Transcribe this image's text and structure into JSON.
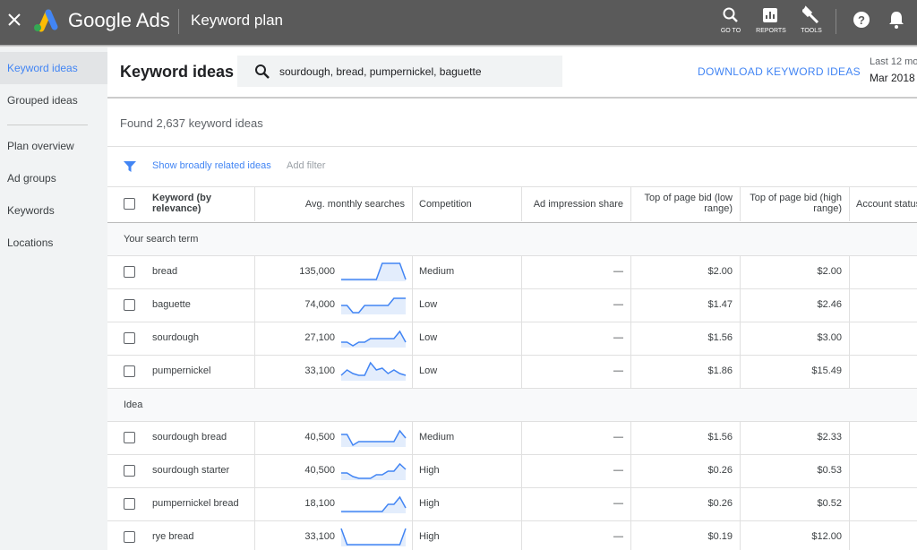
{
  "topbar": {
    "product": "Google Ads",
    "page": "Keyword plan",
    "actions": [
      "GO TO",
      "REPORTS",
      "TOOLS"
    ]
  },
  "sidebar": {
    "items": [
      "Keyword ideas",
      "Grouped ideas",
      "Plan overview",
      "Ad groups",
      "Keywords",
      "Locations"
    ]
  },
  "header": {
    "title": "Keyword ideas",
    "search": "sourdough, bread, pumpernickel, baguette",
    "download": "DOWNLOAD KEYWORD IDEAS",
    "date_range_label": "Last 12 mo",
    "date_range": "Mar 2018"
  },
  "summary": "Found 2,637 keyword ideas",
  "filters": {
    "related": "Show broadly related ideas",
    "add": "Add filter"
  },
  "table": {
    "columns": [
      "Keyword (by relevance)",
      "Avg. monthly searches",
      "Competition",
      "Ad impression share",
      "Top of page bid (low range)",
      "Top of page bid (high range)",
      "Account status"
    ],
    "groups": [
      {
        "label": "Your search term",
        "rows": [
          {
            "keyword": "bread",
            "searches": "135,000",
            "trend": [
              1,
              1,
              1,
              1,
              1,
              1,
              1,
              10,
              10,
              10,
              10,
              1
            ],
            "competition": "Medium",
            "impression_share": "—",
            "bid_low": "$2.00",
            "bid_high": "$2.00"
          },
          {
            "keyword": "baguette",
            "searches": "74,000",
            "trend": [
              5,
              5,
              1,
              1,
              5,
              5,
              5,
              5,
              5,
              9,
              9,
              9
            ],
            "competition": "Low",
            "impression_share": "—",
            "bid_low": "$1.47",
            "bid_high": "$2.46"
          },
          {
            "keyword": "sourdough",
            "searches": "27,100",
            "trend": [
              3,
              3,
              1,
              3,
              3,
              5,
              5,
              5,
              5,
              5,
              9,
              3
            ],
            "competition": "Low",
            "impression_share": "—",
            "bid_low": "$1.56",
            "bid_high": "$3.00"
          },
          {
            "keyword": "pumpernickel",
            "searches": "33,100",
            "trend": [
              3,
              6,
              4,
              3,
              3,
              10,
              6,
              7,
              4,
              6,
              4,
              3
            ],
            "competition": "Low",
            "impression_share": "—",
            "bid_low": "$1.86",
            "bid_high": "$15.49"
          }
        ]
      },
      {
        "label": "Idea",
        "rows": [
          {
            "keyword": "sourdough bread",
            "searches": "40,500",
            "trend": [
              7,
              7,
              1,
              3,
              3,
              3,
              3,
              3,
              3,
              3,
              9,
              5
            ],
            "competition": "Medium",
            "impression_share": "—",
            "bid_low": "$1.56",
            "bid_high": "$2.33"
          },
          {
            "keyword": "sourdough starter",
            "searches": "40,500",
            "trend": [
              4,
              4,
              2,
              1,
              1,
              1,
              3,
              3,
              5,
              5,
              9,
              6
            ],
            "competition": "High",
            "impression_share": "—",
            "bid_low": "$0.26",
            "bid_high": "$0.53"
          },
          {
            "keyword": "pumpernickel bread",
            "searches": "18,100",
            "trend": [
              1,
              1,
              1,
              1,
              1,
              1,
              1,
              1,
              5,
              5,
              9,
              3
            ],
            "competition": "High",
            "impression_share": "—",
            "bid_low": "$0.26",
            "bid_high": "$0.52"
          },
          {
            "keyword": "rye bread",
            "searches": "33,100",
            "trend": [
              10,
              1,
              1,
              1,
              1,
              1,
              1,
              1,
              1,
              1,
              1,
              10
            ],
            "competition": "High",
            "impression_share": "—",
            "bid_low": "$0.19",
            "bid_high": "$12.00"
          }
        ]
      }
    ]
  }
}
